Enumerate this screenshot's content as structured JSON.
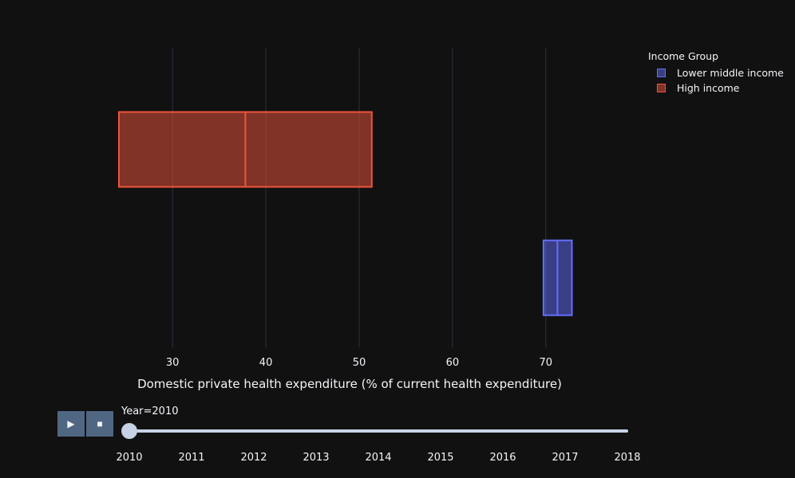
{
  "chart_data": {
    "type": "box",
    "orientation": "horizontal",
    "xlabel": "Domestic private health expenditure (% of current health expenditure)",
    "xlim": [
      18.35,
      79.6
    ],
    "xticks": [
      30,
      40,
      50,
      60,
      70
    ],
    "grid": true,
    "legend": {
      "title": "Income Group",
      "placement": "top-right"
    },
    "series": [
      {
        "name": "Lower middle income",
        "color": "#636efa",
        "q1": 69.75,
        "median": 71.25,
        "q3": 72.8
      },
      {
        "name": "High income",
        "color": "#EF553B",
        "q1": 24.25,
        "median": 37.8,
        "q3": 51.35
      }
    ]
  },
  "slider": {
    "current_label": "Year=2010",
    "current_value": "2010",
    "steps": [
      "2010",
      "2011",
      "2012",
      "2013",
      "2014",
      "2015",
      "2016",
      "2017",
      "2018"
    ]
  },
  "controls": {
    "play_icon": "play-icon",
    "stop_icon": "stop-icon",
    "play_glyph": "▶",
    "stop_glyph": "■"
  }
}
